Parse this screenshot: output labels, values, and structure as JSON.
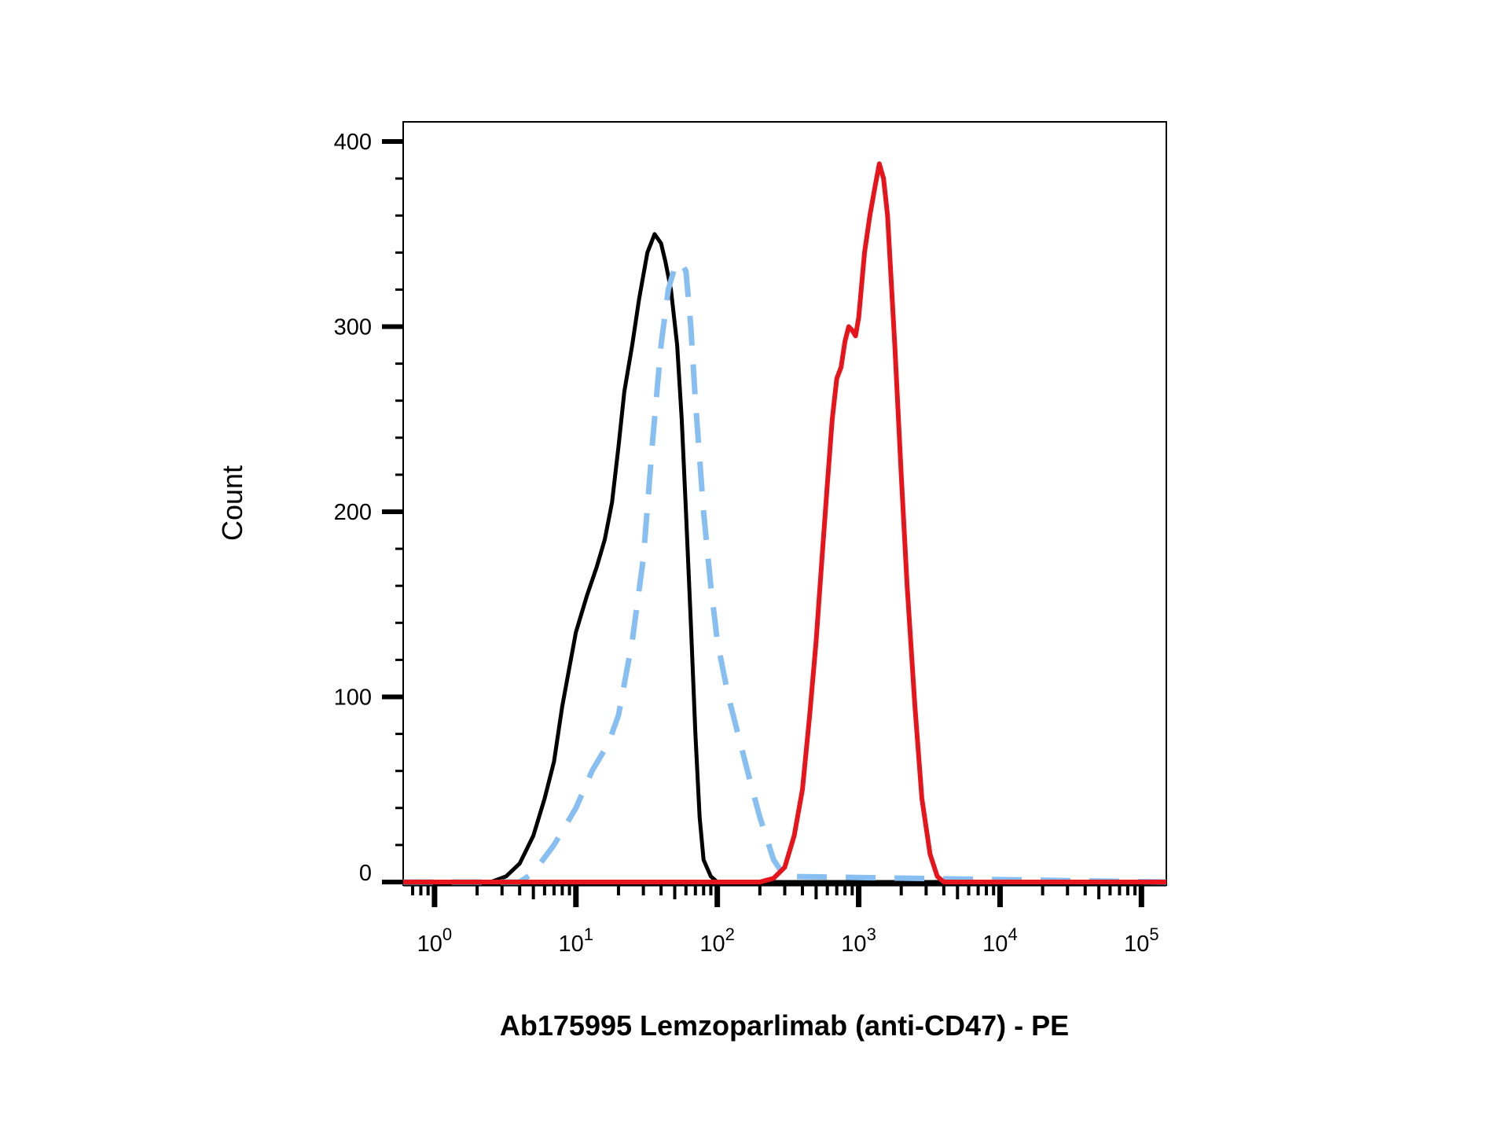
{
  "chart_data": {
    "type": "line",
    "title": "",
    "xlabel": "Ab175995 Lemzoparlimab (anti-CD47) - PE",
    "ylabel": "Count",
    "x_scale": "log",
    "xlim": [
      0.6,
      150000
    ],
    "ylim": [
      0,
      400
    ],
    "x_ticks": [
      {
        "value": 1,
        "base": "10",
        "exp": "0"
      },
      {
        "value": 10,
        "base": "10",
        "exp": "1"
      },
      {
        "value": 100,
        "base": "10",
        "exp": "2"
      },
      {
        "value": 1000,
        "base": "10",
        "exp": "3"
      },
      {
        "value": 10000,
        "base": "10",
        "exp": "4"
      },
      {
        "value": 100000,
        "base": "10",
        "exp": "5"
      }
    ],
    "y_ticks": [
      {
        "value": 0,
        "label": "0"
      },
      {
        "value": 100,
        "label": "100"
      },
      {
        "value": 200,
        "label": "200"
      },
      {
        "value": 300,
        "label": "300"
      },
      {
        "value": 400,
        "label": "400"
      }
    ],
    "grid": false,
    "legend": "none",
    "series": [
      {
        "color": "#000000",
        "style": "solid",
        "x": [
          0.6,
          2.5,
          3.2,
          4,
          5,
          6,
          7,
          8,
          10,
          12,
          14,
          16,
          18,
          20,
          22,
          25,
          28,
          32,
          36,
          40,
          43,
          47,
          52,
          56,
          60,
          65,
          70,
          75,
          80,
          90,
          100,
          150000
        ],
        "y": [
          0,
          0,
          3,
          10,
          25,
          45,
          65,
          95,
          135,
          155,
          170,
          185,
          205,
          235,
          265,
          290,
          315,
          340,
          350,
          345,
          335,
          320,
          290,
          250,
          200,
          140,
          80,
          35,
          12,
          3,
          0,
          0
        ]
      },
      {
        "color": "#88bff2",
        "style": "dashed",
        "x": [
          0.6,
          4,
          5,
          7,
          10,
          13,
          17,
          20,
          25,
          30,
          35,
          40,
          45,
          50,
          55,
          60,
          65,
          70,
          80,
          90,
          100,
          120,
          140,
          170,
          200,
          250,
          300,
          150000
        ],
        "y": [
          0,
          0,
          5,
          20,
          40,
          60,
          75,
          90,
          130,
          175,
          240,
          290,
          320,
          332,
          335,
          330,
          300,
          260,
          200,
          160,
          130,
          100,
          80,
          55,
          35,
          12,
          3,
          0
        ]
      },
      {
        "color": "#e8141c",
        "style": "solid",
        "x": [
          0.6,
          200,
          250,
          300,
          350,
          400,
          450,
          500,
          550,
          600,
          650,
          700,
          750,
          800,
          850,
          900,
          950,
          1000,
          1100,
          1200,
          1300,
          1400,
          1500,
          1600,
          1800,
          2000,
          2200,
          2500,
          2800,
          3200,
          3600,
          4000,
          150000
        ],
        "y": [
          0,
          0,
          2,
          8,
          25,
          50,
          90,
          130,
          175,
          215,
          250,
          272,
          278,
          292,
          300,
          298,
          295,
          305,
          340,
          360,
          375,
          388,
          380,
          360,
          290,
          220,
          160,
          95,
          45,
          15,
          3,
          0,
          0
        ]
      }
    ]
  }
}
